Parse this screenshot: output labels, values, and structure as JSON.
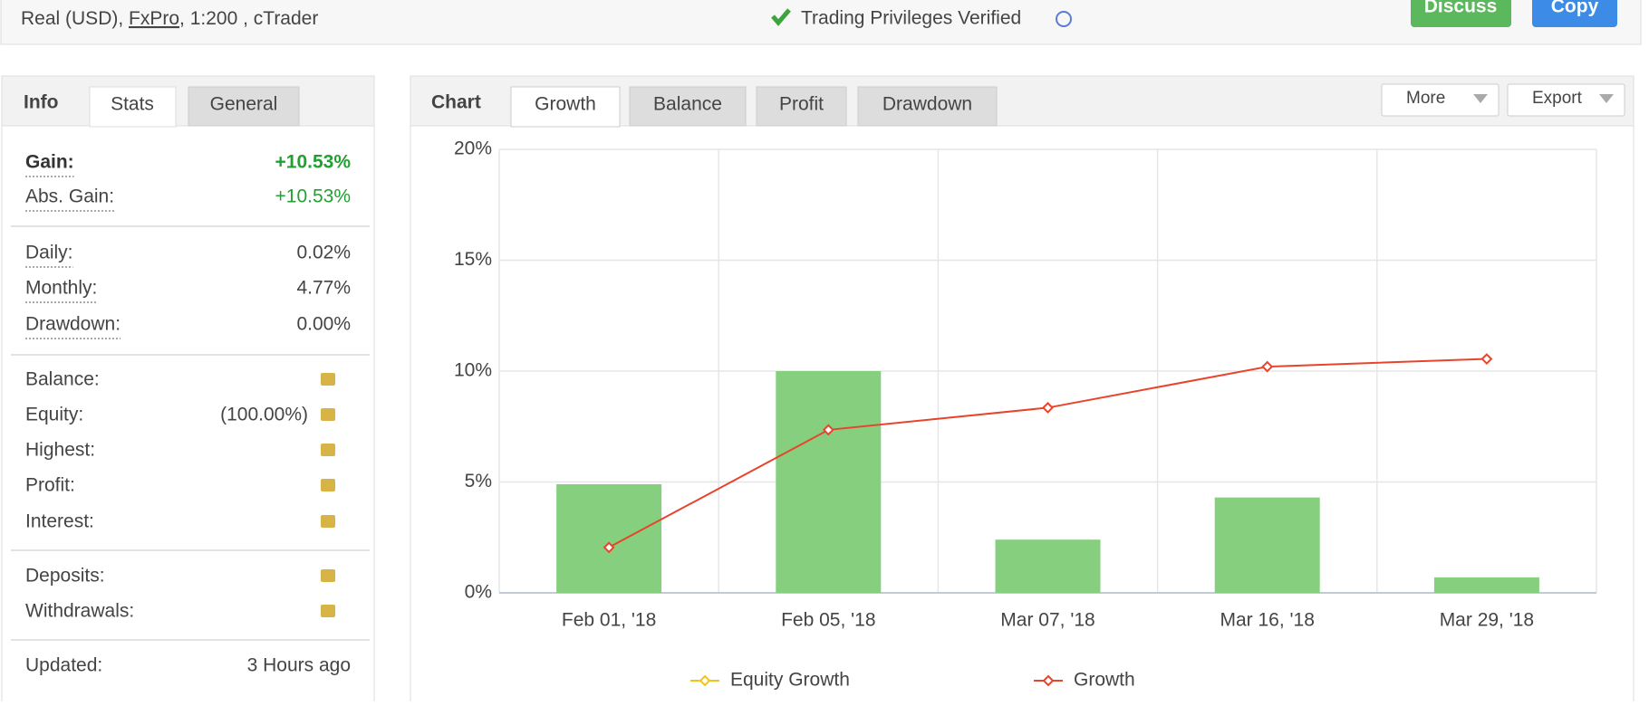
{
  "header": {
    "account": [
      "Real (USD), ",
      "FxPro",
      ", 1:200 , cTrader"
    ],
    "verified": "Trading Privileges Verified",
    "buttons": [
      "Discuss",
      "Copy"
    ]
  },
  "info": {
    "tabs": [
      "Info",
      "Stats",
      "General"
    ],
    "groups": [
      [
        {
          "label": "Gain:",
          "value": "+10.53%",
          "strong": true,
          "green": true
        },
        {
          "label": "Abs. Gain:",
          "value": "+10.53%",
          "green": true
        }
      ],
      [
        {
          "label": "Daily:",
          "value": "0.02%"
        },
        {
          "label": "Monthly:",
          "value": "4.77%"
        },
        {
          "label": "Drawdown:",
          "value": "0.00%"
        }
      ],
      [
        {
          "label": "Balance:",
          "locked": true
        },
        {
          "label": "Equity:",
          "value": "(100.00%)",
          "locked": true
        },
        {
          "label": "Highest:",
          "locked": true
        },
        {
          "label": "Profit:",
          "locked": true
        },
        {
          "label": "Interest:",
          "locked": true
        }
      ],
      [
        {
          "label": "Deposits:",
          "locked": true
        },
        {
          "label": "Withdrawals:",
          "locked": true
        }
      ],
      [
        {
          "label": "Updated:",
          "value": "3 Hours ago"
        }
      ]
    ]
  },
  "chart_panel": {
    "title": "Chart",
    "tabs": [
      "Growth",
      "Balance",
      "Profit",
      "Drawdown"
    ],
    "menus": [
      "More",
      "Export"
    ]
  },
  "chart_data": {
    "type": "bar-line",
    "categories": [
      "Feb 01, '18",
      "Feb 05, '18",
      "Mar 07, '18",
      "Mar 16, '18",
      "Mar 29, '18"
    ],
    "bars": {
      "color": "#86cf7e",
      "values": [
        4.9,
        10.0,
        2.4,
        4.3,
        0.7
      ]
    },
    "series": [
      {
        "name": "Equity Growth",
        "color": "#f2c31c",
        "values": [
          null,
          null,
          null,
          null,
          null
        ]
      },
      {
        "name": "Growth",
        "color": "#e8442c",
        "values": [
          2.05,
          7.35,
          8.35,
          10.2,
          10.55
        ]
      }
    ],
    "ylim": [
      0,
      20
    ],
    "yticks": [
      {
        "value": 0,
        "label": "0%"
      },
      {
        "value": 5,
        "label": "5%"
      },
      {
        "value": 10,
        "label": "10%"
      },
      {
        "value": 15,
        "label": "15%"
      },
      {
        "value": 20,
        "label": "20%"
      }
    ],
    "grid": true
  }
}
